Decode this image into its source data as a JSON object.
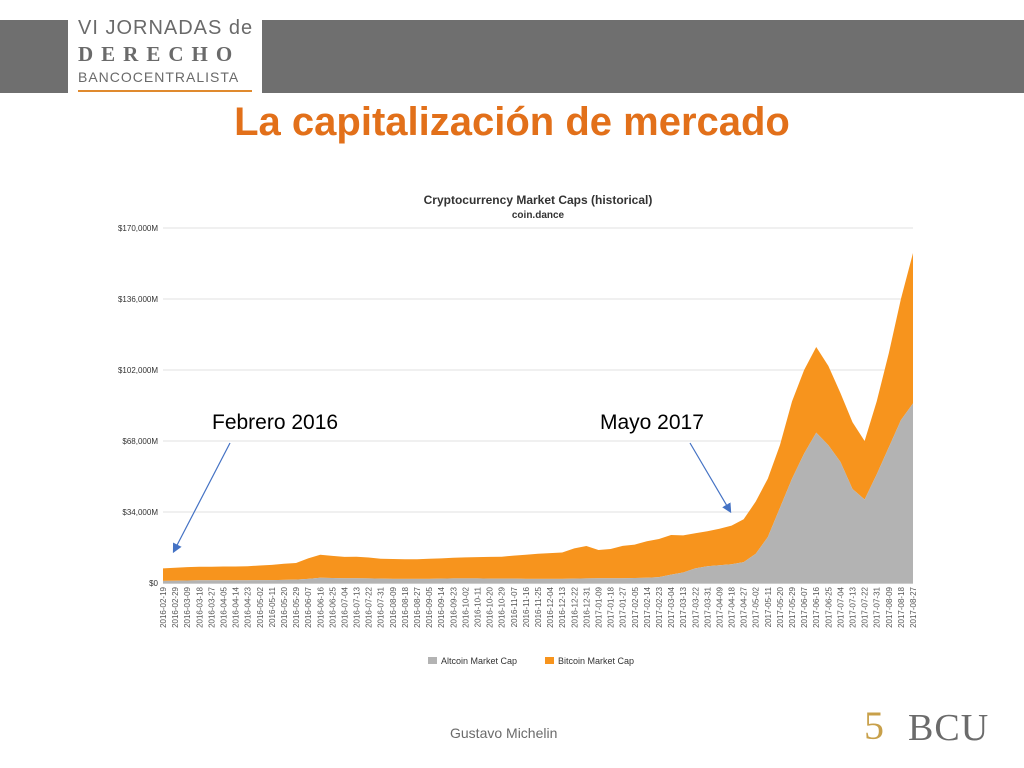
{
  "header": {
    "logo_line1": "VI JORNADAS de",
    "logo_line2": "DERECHO",
    "logo_line3": "BANCOCENTRALISTA"
  },
  "slide": {
    "title": "La capitalización de mercado",
    "footer": "Gustavo Michelin",
    "annotation_left": "Febrero 2016",
    "annotation_right": "Mayo 2017",
    "logo_mark": "5",
    "logo_text": "BCU"
  },
  "colors": {
    "title": "#e2701a",
    "bitcoin": "#f7941d",
    "altcoin": "#b3b3b3",
    "topbar": "#6f6f6f",
    "arrow": "#4472c4"
  },
  "chart_data": {
    "type": "area",
    "stacked": true,
    "title": "Cryptocurrency Market Caps (historical)",
    "subtitle": "coin.dance",
    "ylim": [
      0,
      170000
    ],
    "yticks": [
      "$0",
      "$34,000M",
      "$68,000M",
      "$102,000M",
      "$136,000M",
      "$170,000M"
    ],
    "grid": true,
    "legend_position": "bottom",
    "x": [
      "2016-02-19",
      "2016-02-29",
      "2016-03-09",
      "2016-03-18",
      "2016-03-27",
      "2016-04-05",
      "2016-04-14",
      "2016-04-23",
      "2016-05-02",
      "2016-05-11",
      "2016-05-20",
      "2016-05-29",
      "2016-06-07",
      "2016-06-16",
      "2016-06-25",
      "2016-07-04",
      "2016-07-13",
      "2016-07-22",
      "2016-07-31",
      "2016-08-09",
      "2016-08-18",
      "2016-08-27",
      "2016-09-05",
      "2016-09-14",
      "2016-09-23",
      "2016-10-02",
      "2016-10-11",
      "2016-10-20",
      "2016-10-29",
      "2016-11-07",
      "2016-11-16",
      "2016-11-25",
      "2016-12-04",
      "2016-12-13",
      "2016-12-22",
      "2016-12-31",
      "2017-01-09",
      "2017-01-18",
      "2017-01-27",
      "2017-02-05",
      "2017-02-14",
      "2017-02-23",
      "2017-03-04",
      "2017-03-13",
      "2017-03-22",
      "2017-03-31",
      "2017-04-09",
      "2017-04-18",
      "2017-04-27",
      "2017-05-02",
      "2017-05-11",
      "2017-05-20",
      "2017-05-29",
      "2017-06-07",
      "2017-06-16",
      "2017-06-25",
      "2017-07-04",
      "2017-07-13",
      "2017-07-22",
      "2017-07-31",
      "2017-08-09",
      "2017-08-18",
      "2017-08-27"
    ],
    "series": [
      {
        "name": "Altcoin Market Cap",
        "values": [
          1000,
          1100,
          1200,
          1300,
          1300,
          1300,
          1300,
          1300,
          1400,
          1400,
          1500,
          1600,
          2000,
          2500,
          2400,
          2300,
          2300,
          2200,
          2100,
          2000,
          2000,
          2000,
          2000,
          2100,
          2200,
          2200,
          2200,
          2100,
          2100,
          2100,
          2000,
          2000,
          2000,
          2000,
          2100,
          2200,
          2300,
          2300,
          2300,
          2400,
          2500,
          2800,
          4000,
          5000,
          7000,
          8000,
          8500,
          9000,
          10000,
          14000,
          22000,
          36000,
          50000,
          62000,
          72000,
          66000,
          58000,
          45000,
          40000,
          52000,
          65000,
          78000,
          86000
        ]
      },
      {
        "name": "Bitcoin Market Cap",
        "values": [
          6000,
          6200,
          6400,
          6500,
          6500,
          6600,
          6600,
          6700,
          7000,
          7300,
          7700,
          8000,
          9800,
          11000,
          10600,
          10200,
          10300,
          10000,
          9500,
          9500,
          9400,
          9400,
          9600,
          9700,
          9900,
          10100,
          10200,
          10400,
          10500,
          11000,
          11500,
          12000,
          12300,
          12600,
          14500,
          15500,
          13500,
          14000,
          15500,
          16000,
          17500,
          18300,
          19000,
          17800,
          16800,
          16800,
          17500,
          18500,
          20500,
          25000,
          28000,
          30000,
          37000,
          40000,
          41000,
          38000,
          33000,
          32000,
          28000,
          35000,
          45000,
          58000,
          72000
        ]
      }
    ]
  },
  "legend": {
    "altcoin": "Altcoin Market Cap",
    "bitcoin": "Bitcoin Market Cap"
  }
}
